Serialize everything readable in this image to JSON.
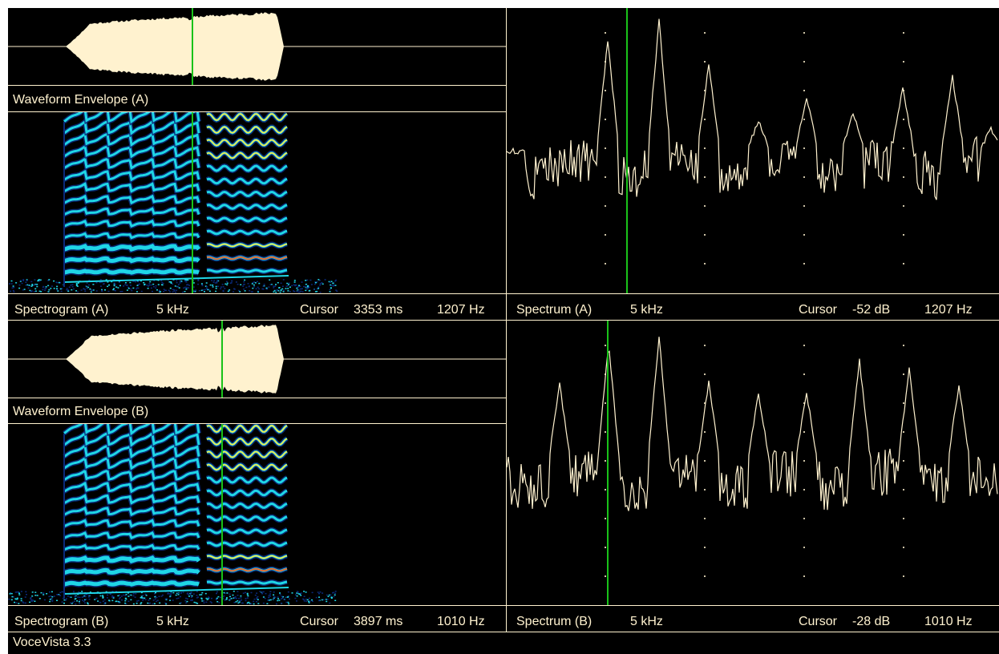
{
  "app": {
    "status": "VoceVista 3.3"
  },
  "colors": {
    "background": "#000000",
    "trace": "#fff2cf",
    "cursor": "#19c219",
    "spectrogram_low": "#0a2a7a",
    "spectrogram_mid": "#1fd6e6",
    "spectrogram_high": "#ffe640",
    "spectrogram_peak": "#ff5a1a"
  },
  "channel_a": {
    "waveform_label": "Waveform Envelope (A)",
    "spectrogram_label": "Spectrogram (A)",
    "spectrogram_range": "5 kHz",
    "spectrogram_cursor_label": "Cursor",
    "spectrogram_cursor_time": "3353 ms",
    "spectrogram_cursor_freq": "1207 Hz",
    "spectrum_label": "Spectrum (A)",
    "spectrum_range": "5 kHz",
    "spectrum_cursor_label": "Cursor",
    "spectrum_cursor_level": "-52 dB",
    "spectrum_cursor_freq": "1207 Hz"
  },
  "channel_b": {
    "waveform_label": "Waveform Envelope (B)",
    "spectrogram_label": "Spectrogram (B)",
    "spectrogram_range": "5 kHz",
    "spectrogram_cursor_label": "Cursor",
    "spectrogram_cursor_time": "3897 ms",
    "spectrogram_cursor_freq": "1010 Hz",
    "spectrum_label": "Spectrum (B)",
    "spectrum_range": "5 kHz",
    "spectrum_cursor_label": "Cursor",
    "spectrum_cursor_level": "-28 dB",
    "spectrum_cursor_freq": "1010 Hz"
  }
}
